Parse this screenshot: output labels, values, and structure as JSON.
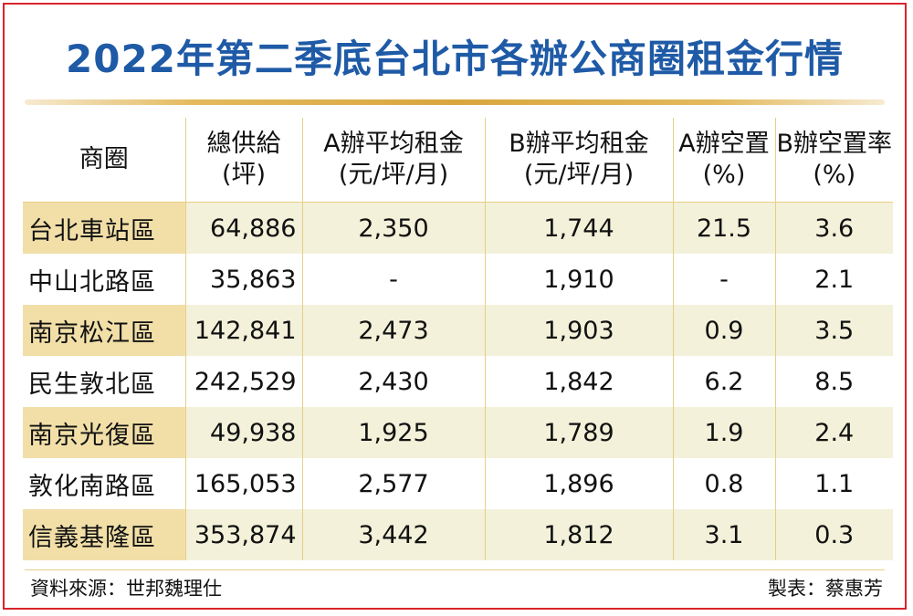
{
  "title": "2022年第二季底台北市各辦公商圈租金行情",
  "table": {
    "headers": [
      {
        "line1": "商圈",
        "line2": ""
      },
      {
        "line1": "總供給",
        "line2": "(坪)"
      },
      {
        "line1": "A辦平均租金",
        "line2": "(元/坪/月)"
      },
      {
        "line1": "B辦平均租金",
        "line2": "(元/坪/月)"
      },
      {
        "line1": "A辦空置",
        "line2": "(%)"
      },
      {
        "line1": "B辦空置率",
        "line2": "(%)"
      }
    ],
    "rows": [
      [
        "台北車站區",
        "64,886",
        "2,350",
        "1,744",
        "21.5",
        "3.6"
      ],
      [
        "中山北路區",
        "35,863",
        "-",
        "1,910",
        "-",
        "2.1"
      ],
      [
        "南京松江區",
        "142,841",
        "2,473",
        "1,903",
        "0.9",
        "3.5"
      ],
      [
        "民生敦北區",
        "242,529",
        "2,430",
        "1,842",
        "6.2",
        "8.5"
      ],
      [
        "南京光復區",
        "49,938",
        "1,925",
        "1,789",
        "1.9",
        "2.4"
      ],
      [
        "敦化南路區",
        "165,053",
        "2,577",
        "1,896",
        "0.8",
        "1.1"
      ],
      [
        "信義基隆區",
        "353,874",
        "3,442",
        "1,812",
        "3.1",
        "0.3"
      ]
    ]
  },
  "footer": {
    "source": "資料來源：世邦魏理仕",
    "credit": "製表：蔡惠芳"
  },
  "colors": {
    "title": "#1f5aa6",
    "border": "#d9242b",
    "row_shade": "#f3f1d9",
    "name_shade": "#f2dfa8",
    "rule": "#e6cf86"
  }
}
